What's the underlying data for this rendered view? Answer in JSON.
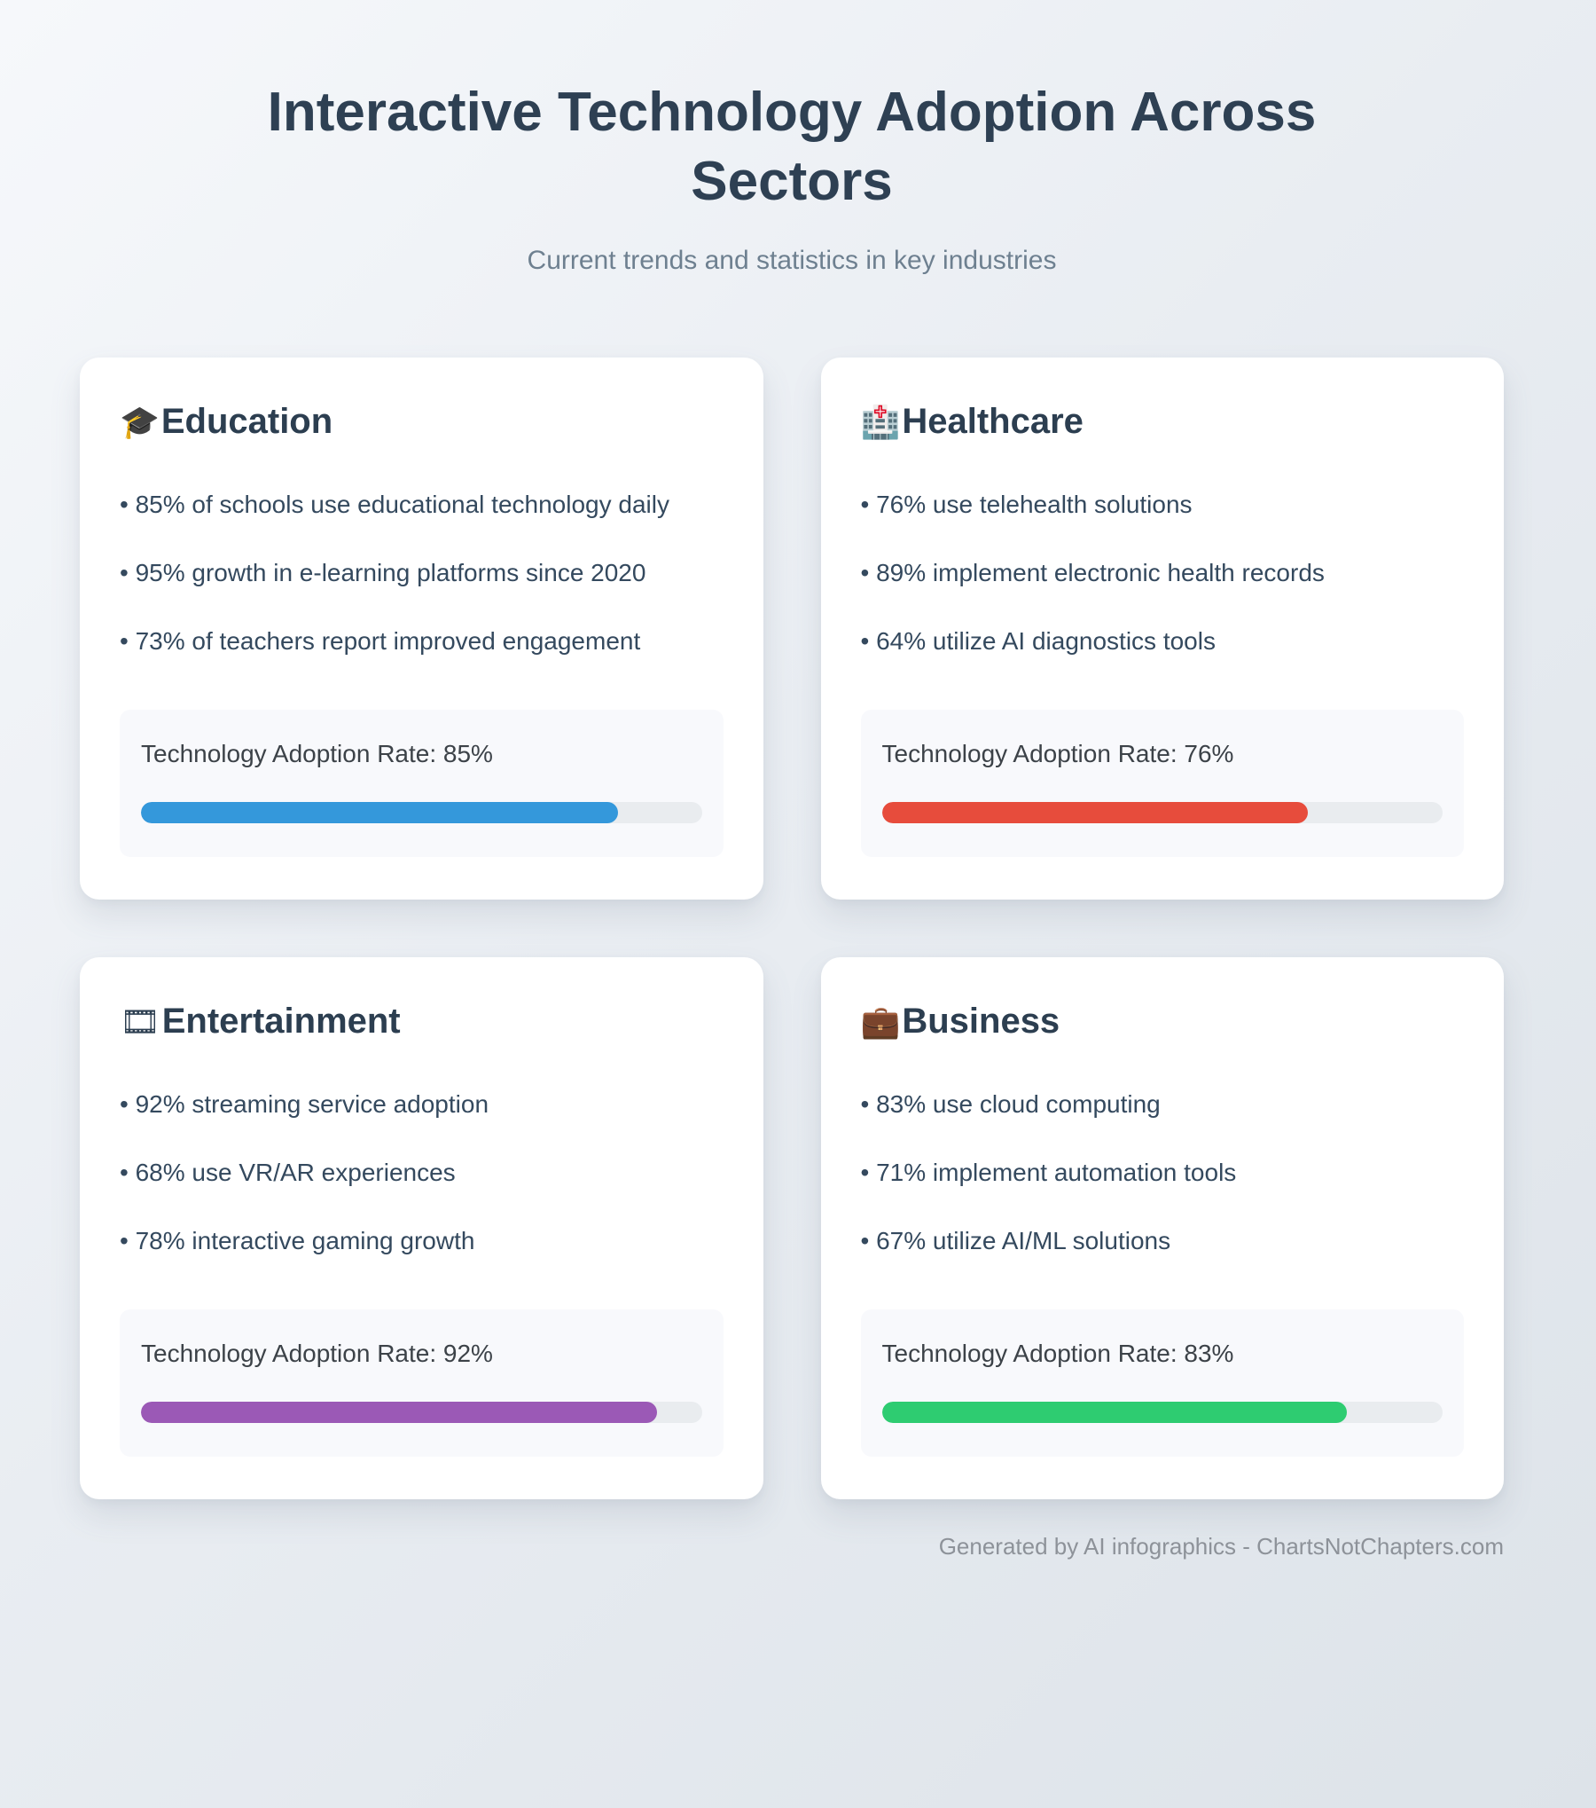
{
  "header": {
    "title": "Interactive Technology Adoption Across Sectors",
    "subtitle": "Current trends and statistics in key industries"
  },
  "sections": [
    {
      "title": "Education",
      "icon": "🎓",
      "icon_name": "graduation-cap-icon",
      "bullets": [
        "• 85% of schools use educational technology daily",
        "• 95% growth in e-learning platforms since 2020",
        "• 73% of teachers report improved engagement"
      ],
      "adoption_label": "Technology Adoption Rate: 85%",
      "adoption_rate": 85,
      "bar_color": "#3498db"
    },
    {
      "title": "Healthcare",
      "icon": "🏥",
      "icon_name": "hospital-icon",
      "bullets": [
        "• 76% use telehealth solutions",
        "• 89% implement electronic health records",
        "• 64% utilize AI diagnostics tools"
      ],
      "adoption_label": "Technology Adoption Rate: 76%",
      "adoption_rate": 76,
      "bar_color": "#e74c3c"
    },
    {
      "title": "Entertainment",
      "icon": "🎞",
      "icon_name": "film-frames-icon",
      "bullets": [
        "• 92% streaming service adoption",
        "• 68% use VR/AR experiences",
        "• 78% interactive gaming growth"
      ],
      "adoption_label": "Technology Adoption Rate: 92%",
      "adoption_rate": 92,
      "bar_color": "#9b59b6"
    },
    {
      "title": "Business",
      "icon": "💼",
      "icon_name": "briefcase-icon",
      "bullets": [
        "• 83% use cloud computing",
        "• 71% implement automation tools",
        "• 67% utilize AI/ML solutions"
      ],
      "adoption_label": "Technology Adoption Rate: 83%",
      "adoption_rate": 83,
      "bar_color": "#2ecc71"
    }
  ],
  "footer": {
    "credit": "Generated by AI infographics - ChartsNotChapters.com"
  },
  "chart_data": {
    "type": "bar",
    "categories": [
      "Education",
      "Healthcare",
      "Entertainment",
      "Business"
    ],
    "values": [
      85,
      76,
      92,
      83
    ],
    "series_label": "Technology Adoption Rate (%)",
    "bar_colors": [
      "#3498db",
      "#e74c3c",
      "#9b59b6",
      "#2ecc71"
    ],
    "title": "Interactive Technology Adoption Across Sectors",
    "subtitle": "Current trends and statistics in key industries",
    "value_range": [
      0,
      100
    ],
    "legend": false,
    "grid": false
  }
}
